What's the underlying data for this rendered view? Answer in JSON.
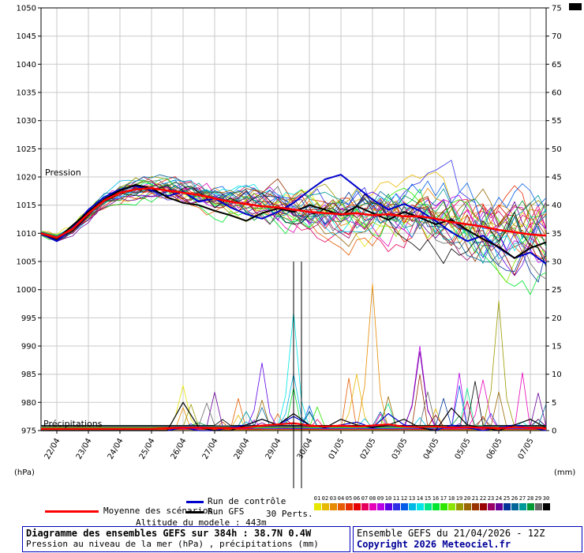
{
  "chart_data": {
    "type": "line",
    "title": "Diagramme des ensembles GEFS sur 384h : 38.7N 0.4W",
    "subtitle": "Pression au niveau de la mer (hPa) , précipitations (mm)",
    "x_tick_labels": [
      "22/04",
      "23/04",
      "24/04",
      "25/04",
      "26/04",
      "27/04",
      "28/04",
      "29/04",
      "30/04",
      "01/05",
      "02/05",
      "03/05",
      "04/05",
      "05/05",
      "06/05",
      "07/05"
    ],
    "hours_total": 384,
    "step_hours": 12,
    "pressure_axis": {
      "label": "(hPa)",
      "min": 975,
      "max": 1050,
      "tick_step": 5
    },
    "precip_axis": {
      "label": "(mm)",
      "min": 0,
      "max": 75,
      "tick_step": 5
    },
    "region_labels": {
      "pressure": "Pression",
      "precip": "Précipitations"
    },
    "marker_hours": [
      192,
      198
    ],
    "grid": true,
    "series": {
      "mean_pressure": [
        1010,
        1009.2,
        1010.8,
        1013.5,
        1015.8,
        1017.2,
        1017.8,
        1018,
        1017.6,
        1017.2,
        1016.8,
        1016.2,
        1015.6,
        1015.2,
        1014.8,
        1014.6,
        1014.2,
        1013.8,
        1013.6,
        1013.4,
        1013.6,
        1013.2,
        1013.4,
        1013,
        1013,
        1012.6,
        1012,
        1011.6,
        1011.2,
        1010.6,
        1010.2,
        1009.8,
        1009.6
      ],
      "control_pressure": [
        1010,
        1008.6,
        1011,
        1014.2,
        1016.4,
        1017.8,
        1018.4,
        1017.6,
        1016.6,
        1017.4,
        1015.6,
        1016.2,
        1014.6,
        1013.4,
        1012.6,
        1013.8,
        1015.4,
        1017.6,
        1019.6,
        1020.4,
        1018.2,
        1016,
        1014.2,
        1015.2,
        1014,
        1012.2,
        1010.2,
        1008.6,
        1009.6,
        1007.4,
        1005.6,
        1006.6,
        1004.6
      ],
      "gfs_pressure": [
        1010,
        1009,
        1011.4,
        1013.8,
        1016,
        1017.6,
        1018.6,
        1018,
        1016.4,
        1015.4,
        1015,
        1014,
        1013.2,
        1012.2,
        1013.6,
        1014.4,
        1013.8,
        1015,
        1014.2,
        1013.2,
        1014.8,
        1013.6,
        1012.4,
        1013.8,
        1012.8,
        1011.6,
        1012.4,
        1010.6,
        1009,
        1007.6,
        1005.6,
        1007.4,
        1008.4
      ],
      "mean_precip": [
        0.3,
        0.3,
        0.3,
        0.3,
        0.3,
        0.3,
        0.3,
        0.3,
        0.4,
        0.5,
        0.5,
        0.4,
        0.4,
        0.5,
        0.9,
        1.1,
        1.3,
        0.9,
        0.7,
        0.9,
        0.7,
        0.9,
        1.1,
        0.7,
        0.6,
        0.7,
        0.5,
        0.6,
        0.5,
        0.4,
        0.6,
        0.5,
        0.4
      ],
      "control_precip": [
        0,
        0,
        0,
        0,
        0,
        0,
        0,
        0,
        0,
        0.5,
        0,
        0,
        0.5,
        1,
        2,
        1,
        2.5,
        1,
        0.5,
        1,
        1.5,
        0.5,
        3,
        1,
        0.5,
        0,
        1,
        0.5,
        0,
        0.5,
        1,
        0.5,
        0
      ],
      "gfs_precip": [
        0,
        0,
        0,
        0,
        0,
        0,
        0,
        0,
        0,
        5,
        0.5,
        0,
        0,
        1,
        2,
        1,
        3,
        1,
        0.5,
        2,
        1,
        0.5,
        1,
        2,
        0.5,
        0,
        4,
        1,
        0.5,
        0,
        1,
        2,
        0.5
      ]
    },
    "members": {
      "count": 30,
      "labels": [
        "01",
        "02",
        "03",
        "04",
        "05",
        "06",
        "07",
        "08",
        "09",
        "10",
        "11",
        "12",
        "13",
        "14",
        "15",
        "16",
        "17",
        "18",
        "19",
        "20",
        "21",
        "22",
        "23",
        "24",
        "25",
        "26",
        "27",
        "28",
        "29",
        "30"
      ],
      "colors": [
        "#e6e600",
        "#e6b800",
        "#e68a00",
        "#e65c00",
        "#e62e00",
        "#e60000",
        "#e6005c",
        "#e600b8",
        "#b800e6",
        "#5c00e6",
        "#2e2ee6",
        "#005ce6",
        "#00b8e6",
        "#00e6e6",
        "#00e68a",
        "#00e62e",
        "#2ee600",
        "#8ae600",
        "#999900",
        "#996600",
        "#993300",
        "#990000",
        "#990066",
        "#660099",
        "#003399",
        "#006699",
        "#009999",
        "#009933",
        "#666666",
        "#000000"
      ],
      "spread_hint": "±1 hPa at start growing to ±8 hPa at +384h",
      "precip_events": [
        {
          "member": 1,
          "step": 9,
          "mm": 8
        },
        {
          "member": 2,
          "step": 20,
          "mm": 10
        },
        {
          "member": 3,
          "step": 21,
          "mm": 26
        },
        {
          "member": 8,
          "step": 28,
          "mm": 9
        },
        {
          "member": 9,
          "step": 24,
          "mm": 15
        },
        {
          "member": 10,
          "step": 14,
          "mm": 12
        },
        {
          "member": 13,
          "step": 16,
          "mm": 10
        },
        {
          "member": 14,
          "step": 16,
          "mm": 21
        },
        {
          "member": 19,
          "step": 29,
          "mm": 23
        },
        {
          "member": 24,
          "step": 24,
          "mm": 14
        }
      ]
    }
  },
  "legend": {
    "mean_label": "Moyenne des scénarios",
    "control_label": "Run de contrôle",
    "gfs_label": "Run GFS",
    "perts_label": "30 Perts.",
    "mean_color": "#ff0000",
    "control_color": "#0000cc",
    "gfs_color": "#000000"
  },
  "footer": {
    "altitude_note": "Altitude du modele : 443m",
    "title_line": "Diagramme des ensembles GEFS sur 384h : 38.7N 0.4W",
    "subtitle_line": "Pression au niveau de la mer (hPa) , précipitations (mm)",
    "run_info": "Ensemble GEFS du 21/04/2026 - 12Z",
    "copyright": "Copyright 2026 Meteociel.fr",
    "box_border_color": "#0000bb",
    "copyright_color": "#000099"
  }
}
